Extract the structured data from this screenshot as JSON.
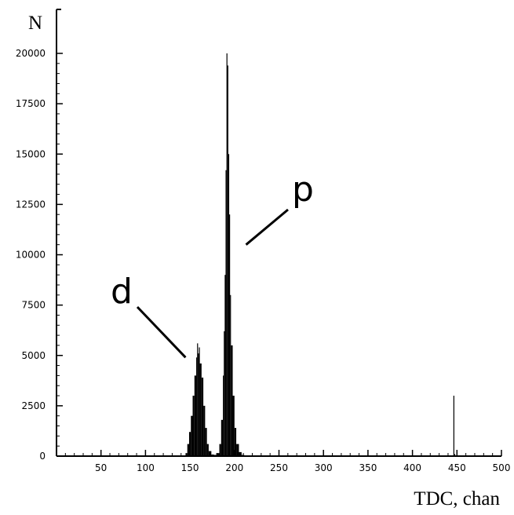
{
  "chart_data": {
    "type": "histogram",
    "xlabel": "TDC, chan",
    "ylabel": "N",
    "xlim": [
      0,
      500
    ],
    "ylim": [
      0,
      20000
    ],
    "x_ticks": [
      50,
      100,
      150,
      200,
      250,
      300,
      350,
      400,
      450,
      500
    ],
    "y_ticks": [
      0,
      2500,
      5000,
      7500,
      10000,
      12500,
      15000,
      17500,
      20000
    ],
    "grid": false,
    "annotations": [
      {
        "text": "d",
        "points_to_x": 145,
        "points_to_y": 4900
      },
      {
        "text": "p",
        "points_to_x": 213,
        "points_to_y": 10500
      }
    ],
    "bins": [
      {
        "x": 145,
        "y": 150
      },
      {
        "x": 147,
        "y": 600
      },
      {
        "x": 149,
        "y": 1200
      },
      {
        "x": 151,
        "y": 2000
      },
      {
        "x": 153,
        "y": 3000
      },
      {
        "x": 155,
        "y": 4000
      },
      {
        "x": 157,
        "y": 4900
      },
      {
        "x": 158,
        "y": 5600
      },
      {
        "x": 159,
        "y": 5100
      },
      {
        "x": 160,
        "y": 5400
      },
      {
        "x": 161,
        "y": 4600
      },
      {
        "x": 163,
        "y": 3900
      },
      {
        "x": 165,
        "y": 2500
      },
      {
        "x": 167,
        "y": 1400
      },
      {
        "x": 169,
        "y": 600
      },
      {
        "x": 171,
        "y": 250
      },
      {
        "x": 174,
        "y": 80
      },
      {
        "x": 177,
        "y": 60
      },
      {
        "x": 180,
        "y": 150
      },
      {
        "x": 183,
        "y": 600
      },
      {
        "x": 185,
        "y": 1800
      },
      {
        "x": 187,
        "y": 4000
      },
      {
        "x": 188,
        "y": 6200
      },
      {
        "x": 189,
        "y": 9000
      },
      {
        "x": 190,
        "y": 14200
      },
      {
        "x": 191,
        "y": 20000
      },
      {
        "x": 192,
        "y": 19400
      },
      {
        "x": 193,
        "y": 15000
      },
      {
        "x": 194,
        "y": 12000
      },
      {
        "x": 195,
        "y": 8000
      },
      {
        "x": 196,
        "y": 5500
      },
      {
        "x": 198,
        "y": 3000
      },
      {
        "x": 200,
        "y": 1400
      },
      {
        "x": 202,
        "y": 600
      },
      {
        "x": 205,
        "y": 200
      },
      {
        "x": 208,
        "y": 60
      },
      {
        "x": 211,
        "y": 20
      },
      {
        "x": 446,
        "y": 3000
      },
      {
        "x": 447,
        "y": 100
      }
    ]
  }
}
